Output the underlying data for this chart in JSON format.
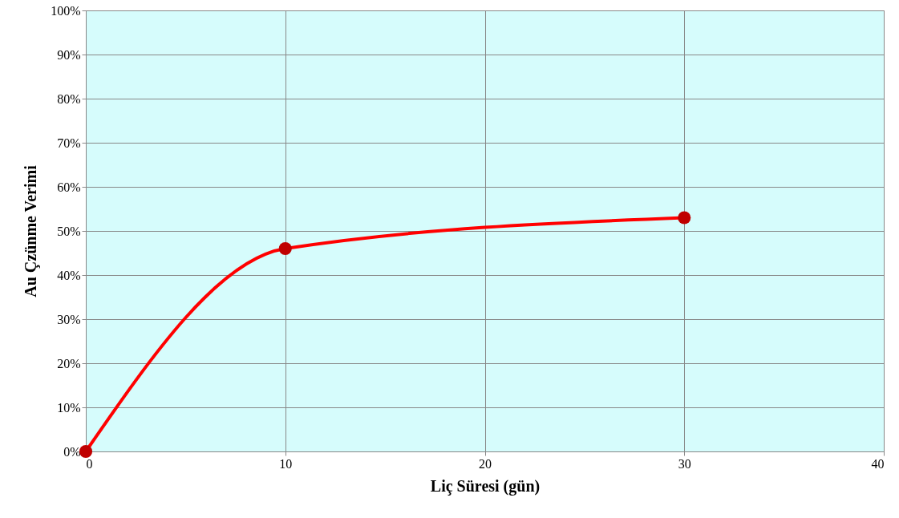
{
  "chart_data": {
    "type": "line",
    "xlabel": "Liç Süresi (gün)",
    "ylabel": "Au Çzünme Verimi",
    "x": [
      0,
      10,
      30
    ],
    "series": [
      {
        "color": "#ff0000",
        "values": [
          0,
          46,
          53
        ]
      }
    ],
    "xlim": [
      0,
      40
    ],
    "xticks": [
      0,
      10,
      20,
      30,
      40
    ],
    "ylim": [
      0,
      100
    ],
    "yticks": [
      {
        "value": 0,
        "label": "0%"
      },
      {
        "value": 10,
        "label": "10%"
      },
      {
        "value": 20,
        "label": "20%"
      },
      {
        "value": 30,
        "label": "30%"
      },
      {
        "value": 40,
        "label": "40%"
      },
      {
        "value": 50,
        "label": "50%"
      },
      {
        "value": 60,
        "label": "60%"
      },
      {
        "value": 70,
        "label": "70%"
      },
      {
        "value": 80,
        "label": "80%"
      },
      {
        "value": 90,
        "label": "90%"
      },
      {
        "value": 100,
        "label": "100%"
      }
    ],
    "grid": true,
    "marker": "circle",
    "line_style": "solid"
  }
}
